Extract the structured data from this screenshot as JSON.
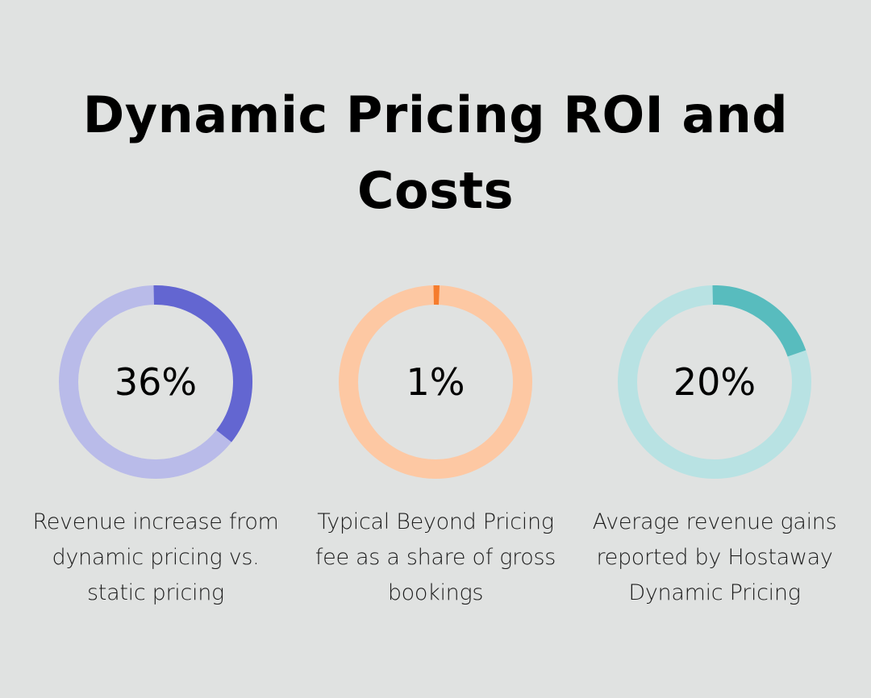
{
  "title": "Dynamic Pricing ROI and Costs",
  "chart_data": {
    "type": "pie",
    "variant": "donut",
    "max": 100,
    "items": [
      {
        "value": 36,
        "label": "36%",
        "caption": "Revenue increase from dynamic pricing vs. static pricing",
        "color": "#6366d1",
        "track_color": "#b9bbe9"
      },
      {
        "value": 1,
        "label": "1%",
        "caption": "Typical Beyond Pricing fee as a share of gross bookings",
        "color": "#f57c2d",
        "track_color": "#fdc8a3"
      },
      {
        "value": 20,
        "label": "20%",
        "caption": "Average revenue gains reported by Hostaway Dynamic Pricing",
        "color": "#58bcbe",
        "track_color": "#b8e2e3"
      }
    ]
  }
}
